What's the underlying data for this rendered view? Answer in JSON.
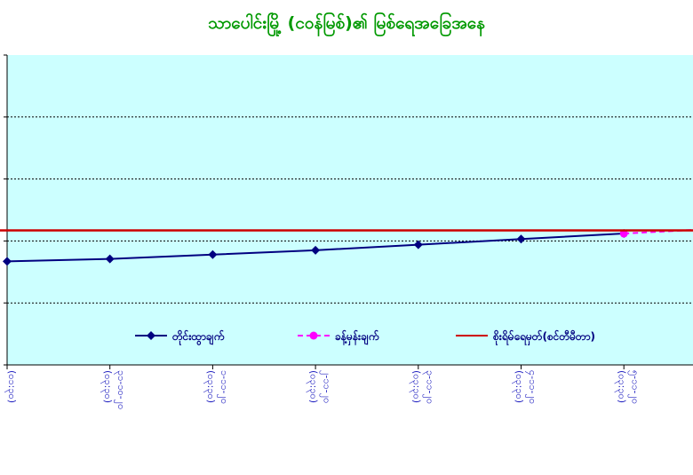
{
  "chart_data": {
    "type": "line",
    "title": "သာပေါင်းမြို့ (ငဝန်မြစ်)၏ မြစ်ရေအခြေအနေ",
    "xlabel": "",
    "ylabel": "",
    "categories": [
      "(၀၁:၃၀)",
      "(၀၃:၃၀)\n၃၁-၁၀-၂၀",
      "(၀၃:၃၀)\n၁-၁၁-၂၀",
      "(၀၃:၃၀)\n၂-၁၁-၂၀",
      "(၀၃:၃၀)\n၃-၁၁-၂၀",
      "(၀၃:၃၀)\n၄-၁၁-၂၀",
      "(၀၃:၃၀)\n၅-၁၁-၂၀"
    ],
    "ylim": [
      0,
      5
    ],
    "grid": true,
    "legend_position": "bottom",
    "series": [
      {
        "name": "တိုင်းထွာချက်",
        "color": "#000080",
        "style": "solid-diamond",
        "points": [
          [
            0,
            1.67
          ],
          [
            1,
            1.71
          ],
          [
            2,
            1.78
          ],
          [
            3,
            1.85
          ],
          [
            4,
            1.94
          ],
          [
            5,
            2.03
          ],
          [
            6,
            2.12
          ]
        ]
      },
      {
        "name": "ခန့်မှန်းချက်",
        "color": "#ff00ff",
        "style": "dashed-circle",
        "points": [
          [
            6,
            2.12
          ],
          [
            6.7,
            2.18
          ]
        ]
      },
      {
        "name": "စိုးရိမ်ရေမှတ်(စင်တီမီတာ)",
        "color": "#cc0000",
        "style": "solid",
        "points": [
          [
            -0.3,
            2.17
          ],
          [
            6.9,
            2.17
          ]
        ]
      }
    ]
  }
}
